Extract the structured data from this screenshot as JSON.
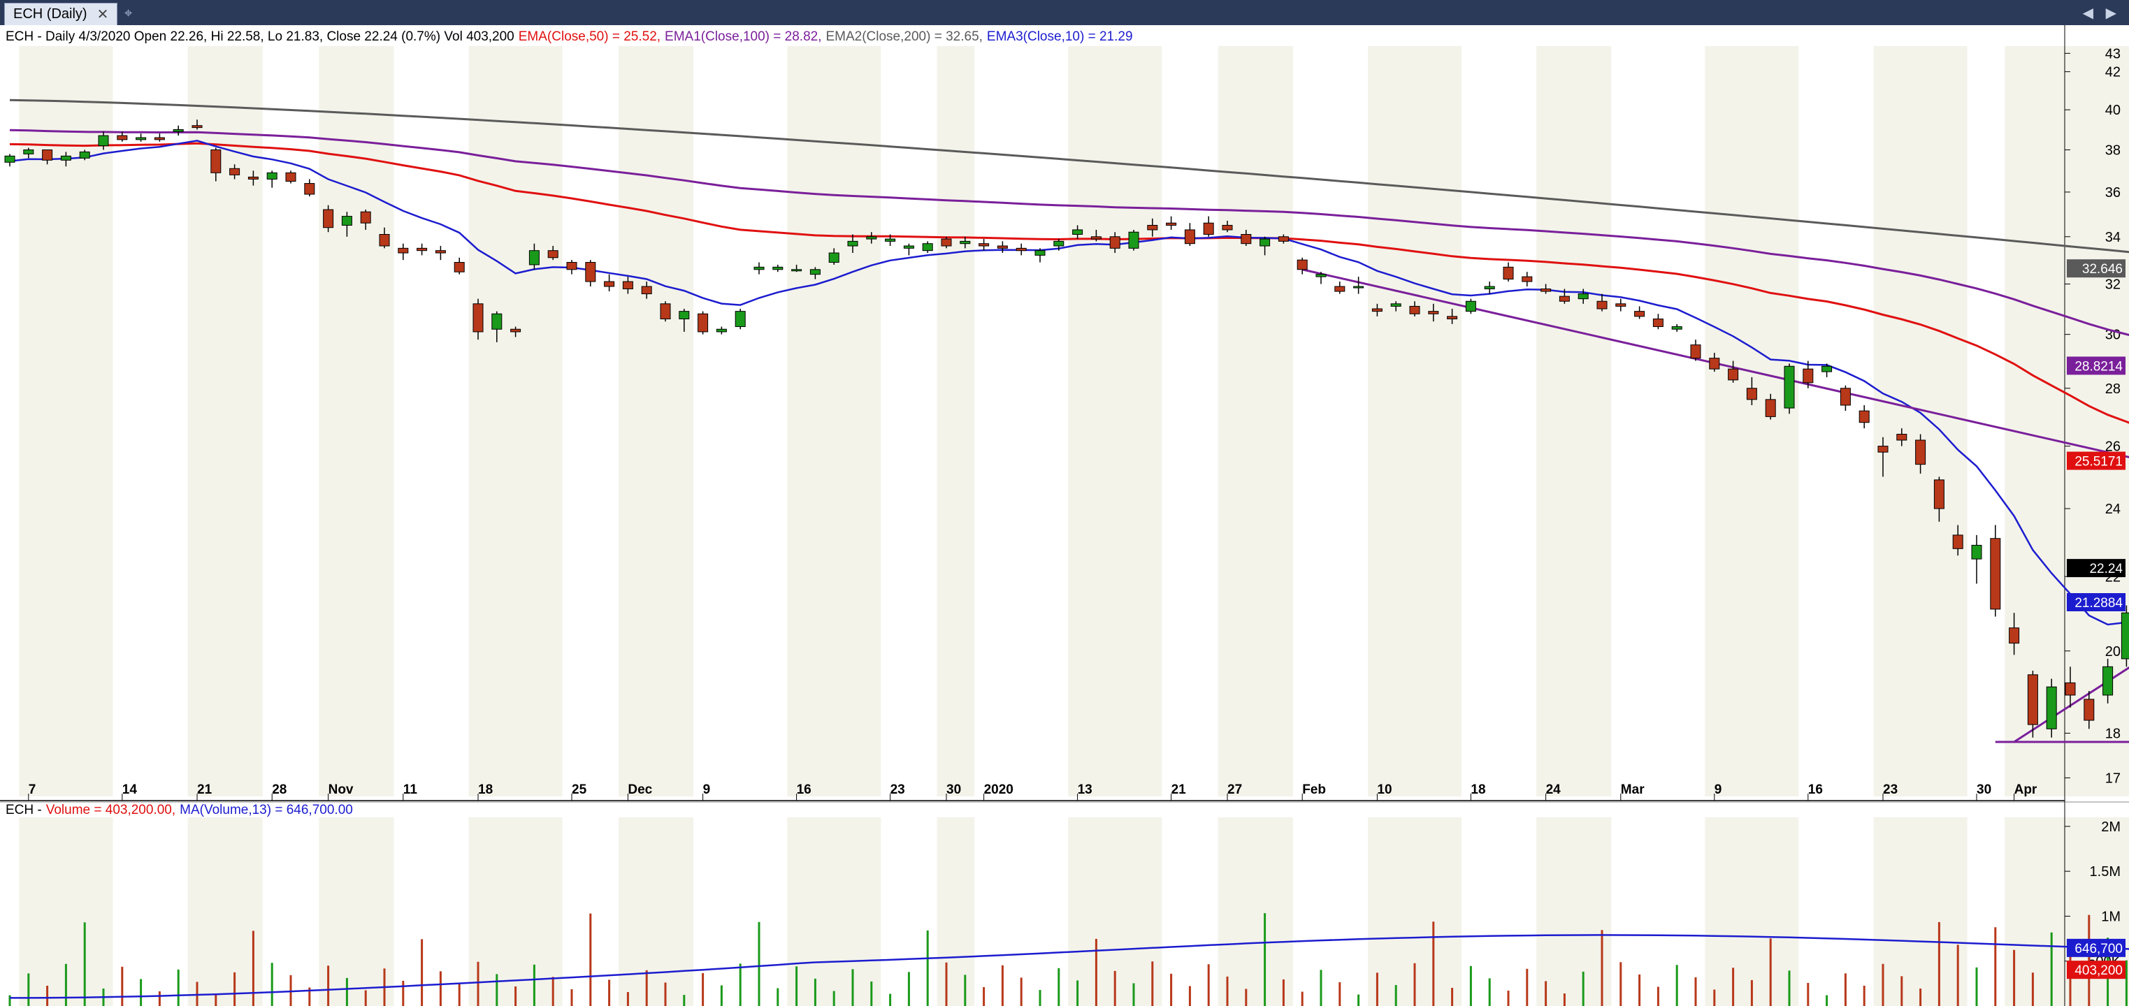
{
  "window": {
    "tab_label": "ECH (Daily)",
    "close_glyph": "✕",
    "pin_glyph": "⌖",
    "nav_glyph": "◀ ▶"
  },
  "price_header": {
    "main": "ECH - Daily 4/3/2020 Open 22.26, Hi 22.58, Lo 21.83, Close 22.24 (0.7%) Vol 403,200",
    "ema50": "EMA(Close,50) = 25.52,",
    "ema100": "EMA1(Close,100) = 28.82,",
    "ema200": "EMA2(Close,200) = 32.65,",
    "ema10": "EMA3(Close,10) = 21.29"
  },
  "volume_header": {
    "symbol": "ECH -",
    "volume": "Volume = 403,200.00,",
    "ma": "MA(Volume,13) = 646,700.00"
  },
  "colors": {
    "up": "#1a9a1a",
    "down": "#b8381a",
    "ema10": "#1c1ccf",
    "ema50": "#e01010",
    "ema100": "#7a1f9a",
    "ema200": "#5a5a5a",
    "trendline": "#7a1f9a",
    "volma": "#1c1ccf"
  },
  "chart_data": [
    {
      "type": "candlestick",
      "title": "ECH - Daily",
      "y_ticks": [
        17,
        18,
        20,
        22,
        24,
        26,
        28,
        30,
        32,
        34,
        36,
        38,
        40,
        42,
        43
      ],
      "ylim": [
        16.6,
        43.4
      ],
      "log_scale": true,
      "x_tick_labels": [
        {
          "i": 1,
          "t": "7"
        },
        {
          "i": 6,
          "t": "14"
        },
        {
          "i": 10,
          "t": "21"
        },
        {
          "i": 14,
          "t": "28"
        },
        {
          "i": 17,
          "t": "Nov"
        },
        {
          "i": 21,
          "t": "11"
        },
        {
          "i": 25,
          "t": "18"
        },
        {
          "i": 30,
          "t": "25"
        },
        {
          "i": 33,
          "t": "Dec"
        },
        {
          "i": 37,
          "t": "9"
        },
        {
          "i": 42,
          "t": "16"
        },
        {
          "i": 47,
          "t": "23"
        },
        {
          "i": 50,
          "t": "30"
        },
        {
          "i": 52,
          "t": "2020"
        },
        {
          "i": 57,
          "t": "13"
        },
        {
          "i": 62,
          "t": "21"
        },
        {
          "i": 65,
          "t": "27"
        },
        {
          "i": 69,
          "t": "Feb"
        },
        {
          "i": 73,
          "t": "10"
        },
        {
          "i": 78,
          "t": "18"
        },
        {
          "i": 82,
          "t": "24"
        },
        {
          "i": 86,
          "t": "Mar"
        },
        {
          "i": 91,
          "t": "9"
        },
        {
          "i": 96,
          "t": "16"
        },
        {
          "i": 100,
          "t": "23"
        },
        {
          "i": 105,
          "t": "30"
        },
        {
          "i": 107,
          "t": "Apr"
        }
      ],
      "ohlc": [
        [
          37.4,
          37.8,
          37.2,
          37.7
        ],
        [
          37.8,
          38.1,
          37.6,
          38.0
        ],
        [
          38.0,
          38.0,
          37.3,
          37.5
        ],
        [
          37.5,
          37.9,
          37.2,
          37.7
        ],
        [
          37.6,
          38.0,
          37.5,
          37.9
        ],
        [
          38.2,
          38.9,
          38.0,
          38.7
        ],
        [
          38.7,
          38.9,
          38.4,
          38.5
        ],
        [
          38.5,
          38.8,
          38.4,
          38.6
        ],
        [
          38.6,
          38.8,
          38.4,
          38.5
        ],
        [
          38.9,
          39.2,
          38.7,
          39.0
        ],
        [
          39.2,
          39.5,
          39.0,
          39.1
        ],
        [
          38.0,
          38.1,
          36.5,
          36.9
        ],
        [
          37.1,
          37.3,
          36.6,
          36.8
        ],
        [
          36.7,
          37.0,
          36.3,
          36.6
        ],
        [
          36.6,
          37.0,
          36.2,
          36.9
        ],
        [
          36.9,
          37.0,
          36.4,
          36.5
        ],
        [
          36.4,
          36.6,
          35.8,
          35.9
        ],
        [
          35.2,
          35.4,
          34.2,
          34.4
        ],
        [
          34.5,
          35.1,
          34.0,
          34.9
        ],
        [
          35.1,
          35.2,
          34.3,
          34.6
        ],
        [
          34.1,
          34.4,
          33.5,
          33.6
        ],
        [
          33.5,
          33.7,
          33.0,
          33.3
        ],
        [
          33.5,
          33.7,
          33.2,
          33.4
        ],
        [
          33.4,
          33.6,
          33.0,
          33.3
        ],
        [
          32.9,
          33.1,
          32.4,
          32.5
        ],
        [
          31.2,
          31.4,
          29.8,
          30.1
        ],
        [
          30.2,
          30.9,
          29.7,
          30.8
        ],
        [
          30.2,
          30.3,
          29.9,
          30.1
        ],
        [
          32.8,
          33.7,
          32.6,
          33.4
        ],
        [
          33.4,
          33.6,
          33.0,
          33.1
        ],
        [
          32.9,
          33.0,
          32.4,
          32.6
        ],
        [
          32.9,
          33.0,
          31.9,
          32.1
        ],
        [
          32.1,
          32.4,
          31.7,
          31.9
        ],
        [
          32.1,
          32.3,
          31.6,
          31.8
        ],
        [
          31.9,
          32.1,
          31.4,
          31.6
        ],
        [
          31.2,
          31.3,
          30.5,
          30.6
        ],
        [
          30.6,
          31.0,
          30.1,
          30.9
        ],
        [
          30.8,
          30.9,
          30.0,
          30.1
        ],
        [
          30.1,
          30.3,
          30.0,
          30.2
        ],
        [
          30.3,
          31.0,
          30.2,
          30.9
        ],
        [
          32.6,
          32.9,
          32.4,
          32.7
        ],
        [
          32.6,
          32.8,
          32.5,
          32.7
        ],
        [
          32.6,
          32.8,
          32.5,
          32.6
        ],
        [
          32.4,
          32.7,
          32.2,
          32.6
        ],
        [
          32.9,
          33.5,
          32.8,
          33.3
        ],
        [
          33.6,
          34.1,
          33.3,
          33.8
        ],
        [
          33.9,
          34.2,
          33.7,
          34.0
        ],
        [
          33.8,
          34.1,
          33.6,
          33.9
        ],
        [
          33.5,
          33.7,
          33.2,
          33.6
        ],
        [
          33.4,
          33.8,
          33.3,
          33.7
        ],
        [
          33.9,
          34.0,
          33.5,
          33.6
        ],
        [
          33.7,
          34.0,
          33.5,
          33.8
        ],
        [
          33.7,
          33.9,
          33.4,
          33.6
        ],
        [
          33.6,
          33.8,
          33.3,
          33.5
        ],
        [
          33.5,
          33.7,
          33.2,
          33.4
        ],
        [
          33.2,
          33.5,
          32.9,
          33.4
        ],
        [
          33.6,
          33.9,
          33.4,
          33.8
        ],
        [
          34.1,
          34.5,
          33.9,
          34.3
        ],
        [
          34.0,
          34.3,
          33.8,
          33.9
        ],
        [
          34.0,
          34.2,
          33.3,
          33.5
        ],
        [
          33.5,
          34.3,
          33.4,
          34.2
        ],
        [
          34.5,
          34.8,
          34.0,
          34.3
        ],
        [
          34.6,
          34.9,
          34.3,
          34.5
        ],
        [
          34.3,
          34.6,
          33.6,
          33.7
        ],
        [
          34.6,
          34.9,
          34.0,
          34.1
        ],
        [
          34.5,
          34.7,
          34.2,
          34.3
        ],
        [
          34.1,
          34.3,
          33.6,
          33.7
        ],
        [
          33.6,
          34.0,
          33.2,
          33.9
        ],
        [
          34.0,
          34.1,
          33.7,
          33.8
        ],
        [
          33.0,
          33.1,
          32.4,
          32.6
        ],
        [
          32.3,
          32.5,
          32.0,
          32.4
        ],
        [
          31.9,
          32.1,
          31.6,
          31.7
        ],
        [
          31.9,
          32.3,
          31.6,
          31.9
        ],
        [
          31.0,
          31.2,
          30.7,
          30.9
        ],
        [
          31.1,
          31.3,
          30.9,
          31.2
        ],
        [
          31.1,
          31.3,
          30.7,
          30.8
        ],
        [
          30.9,
          31.2,
          30.5,
          30.8
        ],
        [
          30.7,
          31.0,
          30.4,
          30.6
        ],
        [
          30.9,
          31.4,
          30.8,
          31.3
        ],
        [
          31.8,
          32.1,
          31.6,
          31.9
        ],
        [
          32.7,
          32.9,
          32.1,
          32.2
        ],
        [
          32.3,
          32.5,
          31.9,
          32.1
        ],
        [
          31.8,
          32.0,
          31.6,
          31.7
        ],
        [
          31.5,
          31.8,
          31.2,
          31.3
        ],
        [
          31.4,
          31.8,
          31.2,
          31.6
        ],
        [
          31.3,
          31.6,
          30.9,
          31.0
        ],
        [
          31.2,
          31.4,
          30.9,
          31.1
        ],
        [
          30.9,
          31.1,
          30.6,
          30.7
        ],
        [
          30.6,
          30.8,
          30.2,
          30.3
        ],
        [
          30.2,
          30.4,
          30.1,
          30.3
        ],
        [
          29.6,
          29.8,
          29.0,
          29.1
        ],
        [
          29.1,
          29.3,
          28.6,
          28.7
        ],
        [
          28.7,
          29.0,
          28.2,
          28.3
        ],
        [
          28.0,
          28.4,
          27.4,
          27.6
        ],
        [
          27.6,
          27.8,
          26.9,
          27.0
        ],
        [
          27.3,
          28.9,
          27.1,
          28.8
        ],
        [
          28.7,
          29.0,
          28.0,
          28.2
        ],
        [
          28.6,
          28.9,
          28.4,
          28.8
        ],
        [
          28.0,
          28.1,
          27.2,
          27.4
        ],
        [
          27.2,
          27.4,
          26.6,
          26.8
        ],
        [
          26.0,
          26.3,
          25.0,
          25.8
        ],
        [
          26.4,
          26.6,
          26.0,
          26.2
        ],
        [
          26.2,
          26.4,
          25.1,
          25.4
        ]
      ],
      "series": [
        {
          "name": "EMA(Close,50)",
          "last": 25.5171
        },
        {
          "name": "EMA1(Close,100)",
          "last": 28.8214
        },
        {
          "name": "EMA2(Close,200)",
          "last": 32.646
        },
        {
          "name": "EMA3(Close,10)",
          "last": 21.2884
        }
      ],
      "last_close": 22.24,
      "axis_badges": [
        "32.646",
        "28.8214",
        "25.5171",
        "22.24",
        "21.2884"
      ]
    },
    {
      "type": "bar",
      "title": "ECH - Volume",
      "y_ticks": [
        "500K",
        "1M",
        "1.5M",
        "2M"
      ],
      "ylim": [
        0,
        2100000
      ],
      "volume_ma_last": 646700,
      "volume_last": 403200,
      "axis_badges": [
        "646,700",
        "403,200"
      ]
    }
  ]
}
